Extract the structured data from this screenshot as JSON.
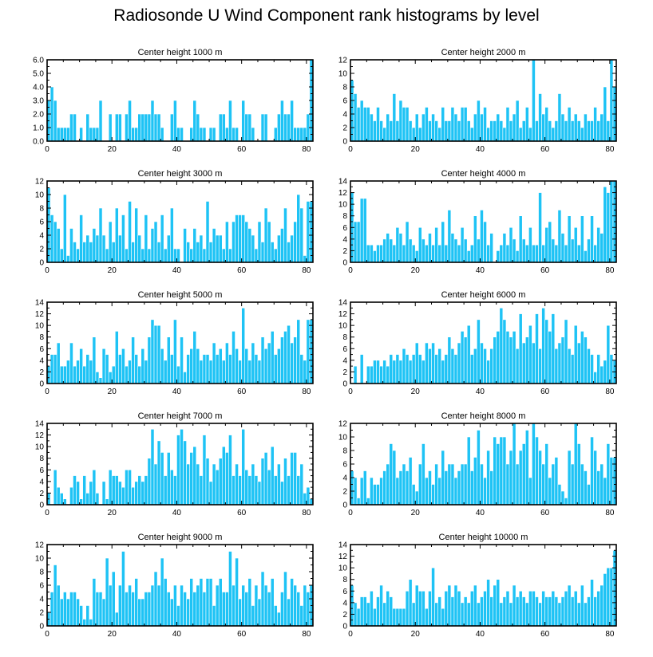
{
  "title": "Radiosonde U Wind Component rank histograms by level",
  "colors": {
    "bar": "#1EC3F5",
    "axis": "#000000",
    "bar_edge": "#ffffff"
  },
  "chart_data": [
    {
      "type": "bar",
      "title": "Center height 1000 m",
      "xlabel": "",
      "ylabel": "",
      "xlim": [
        0,
        82
      ],
      "ylim": [
        0,
        6
      ],
      "xticks": [
        0,
        20,
        40,
        60,
        80
      ],
      "yticks": [
        0,
        1,
        2,
        3,
        4,
        5,
        6
      ],
      "ytick_labels": [
        "0.0",
        "1.0",
        "2.0",
        "3.0",
        "4.0",
        "5.0",
        "6.0"
      ],
      "values": [
        3,
        4,
        3,
        1,
        1,
        1,
        1,
        2,
        2,
        0,
        1,
        0,
        2,
        1,
        1,
        1,
        3,
        0,
        0,
        2,
        0,
        2,
        2,
        0,
        2,
        3,
        1,
        1,
        2,
        2,
        2,
        2,
        3,
        2,
        2,
        1,
        0,
        0,
        2,
        3,
        1,
        1,
        0,
        0,
        1,
        3,
        2,
        1,
        1,
        0,
        1,
        1,
        0,
        2,
        2,
        1,
        3,
        1,
        1,
        0,
        3,
        2,
        2,
        1,
        0,
        0,
        2,
        2,
        0,
        0,
        1,
        2,
        3,
        2,
        2,
        3,
        1,
        1,
        1,
        1,
        2,
        6
      ]
    },
    {
      "type": "bar",
      "title": "Center height 2000 m",
      "xlabel": "",
      "ylabel": "",
      "xlim": [
        0,
        82
      ],
      "ylim": [
        0,
        12
      ],
      "xticks": [
        0,
        20,
        40,
        60,
        80
      ],
      "yticks": [
        0,
        2,
        4,
        6,
        8,
        10,
        12
      ],
      "ytick_labels": [
        "0",
        "2",
        "4",
        "6",
        "8",
        "10",
        "12"
      ],
      "values": [
        9,
        7,
        5,
        6,
        5,
        5,
        4,
        3,
        5,
        3,
        2,
        4,
        3,
        7,
        3,
        6,
        5,
        5,
        3,
        2,
        4,
        2,
        4,
        5,
        3,
        4,
        3,
        2,
        5,
        3,
        3,
        5,
        4,
        3,
        5,
        5,
        3,
        2,
        4,
        6,
        4,
        5,
        2,
        3,
        3,
        4,
        3,
        2,
        5,
        3,
        4,
        6,
        2,
        3,
        5,
        2,
        12,
        3,
        7,
        4,
        5,
        3,
        2,
        3,
        7,
        4,
        3,
        5,
        3,
        4,
        3,
        2,
        4,
        3,
        3,
        5,
        3,
        4,
        8,
        3,
        12,
        8
      ]
    },
    {
      "type": "bar",
      "title": "Center height 3000 m",
      "xlabel": "",
      "ylabel": "",
      "xlim": [
        0,
        82
      ],
      "ylim": [
        0,
        12
      ],
      "xticks": [
        0,
        20,
        40,
        60,
        80
      ],
      "yticks": [
        0,
        2,
        4,
        6,
        8,
        10,
        12
      ],
      "ytick_labels": [
        "0",
        "2",
        "4",
        "6",
        "8",
        "10",
        "12"
      ],
      "values": [
        11,
        7,
        6,
        5,
        2,
        10,
        1,
        5,
        3,
        2,
        7,
        3,
        4,
        3,
        5,
        4,
        8,
        4,
        2,
        6,
        3,
        8,
        4,
        7,
        2,
        9,
        3,
        8,
        4,
        2,
        7,
        2,
        5,
        6,
        3,
        7,
        2,
        4,
        8,
        2,
        2,
        0,
        5,
        3,
        2,
        5,
        3,
        4,
        2,
        9,
        3,
        5,
        4,
        4,
        2,
        6,
        2,
        6,
        7,
        7,
        7,
        6,
        5,
        4,
        2,
        6,
        3,
        8,
        6,
        3,
        2,
        4,
        5,
        8,
        3,
        4,
        6,
        10,
        8,
        1,
        9,
        9
      ]
    },
    {
      "type": "bar",
      "title": "Center height 4000 m",
      "xlabel": "",
      "ylabel": "",
      "xlim": [
        0,
        82
      ],
      "ylim": [
        0,
        14
      ],
      "xticks": [
        0,
        20,
        40,
        60,
        80
      ],
      "yticks": [
        0,
        2,
        4,
        6,
        8,
        10,
        12,
        14
      ],
      "ytick_labels": [
        "0",
        "2",
        "4",
        "6",
        "8",
        "10",
        "12",
        "14"
      ],
      "values": [
        12,
        7,
        7,
        11,
        11,
        3,
        3,
        2,
        3,
        3,
        4,
        5,
        4,
        3,
        6,
        5,
        3,
        7,
        4,
        3,
        2,
        6,
        4,
        3,
        5,
        3,
        6,
        3,
        7,
        3,
        9,
        5,
        4,
        3,
        6,
        4,
        2,
        3,
        8,
        4,
        9,
        7,
        3,
        5,
        0,
        2,
        3,
        5,
        3,
        6,
        4,
        2,
        8,
        4,
        3,
        6,
        3,
        3,
        12,
        3,
        6,
        7,
        4,
        3,
        9,
        5,
        3,
        8,
        4,
        6,
        3,
        8,
        2,
        4,
        8,
        3,
        6,
        5,
        13,
        12,
        14,
        14
      ]
    },
    {
      "type": "bar",
      "title": "Center height 5000 m",
      "xlabel": "",
      "ylabel": "",
      "xlim": [
        0,
        82
      ],
      "ylim": [
        0,
        14
      ],
      "xticks": [
        0,
        20,
        40,
        60,
        80
      ],
      "yticks": [
        0,
        2,
        4,
        6,
        8,
        10,
        12,
        14
      ],
      "ytick_labels": [
        "0",
        "2",
        "4",
        "6",
        "8",
        "10",
        "12",
        "14"
      ],
      "values": [
        3,
        5,
        5,
        7,
        3,
        3,
        4,
        7,
        3,
        4,
        6,
        3,
        5,
        4,
        8,
        2,
        1,
        6,
        5,
        2,
        3,
        9,
        5,
        6,
        3,
        4,
        8,
        5,
        3,
        6,
        4,
        8,
        11,
        10,
        10,
        6,
        4,
        8,
        5,
        11,
        3,
        8,
        2,
        5,
        6,
        9,
        6,
        4,
        5,
        5,
        4,
        7,
        5,
        6,
        4,
        7,
        5,
        9,
        6,
        4,
        13,
        6,
        4,
        7,
        5,
        4,
        8,
        6,
        7,
        9,
        5,
        6,
        8,
        9,
        10,
        7,
        8,
        11,
        5,
        4,
        11,
        11
      ]
    },
    {
      "type": "bar",
      "title": "Center height 6000 m",
      "xlabel": "",
      "ylabel": "",
      "xlim": [
        0,
        82
      ],
      "ylim": [
        0,
        14
      ],
      "xticks": [
        0,
        20,
        40,
        60,
        80
      ],
      "yticks": [
        0,
        2,
        4,
        6,
        8,
        10,
        12,
        14
      ],
      "ytick_labels": [
        "0",
        "2",
        "4",
        "6",
        "8",
        "10",
        "12",
        "14"
      ],
      "values": [
        0,
        3,
        0,
        5,
        0,
        3,
        3,
        4,
        4,
        3,
        4,
        3,
        5,
        4,
        5,
        4,
        6,
        5,
        4,
        5,
        7,
        5,
        4,
        7,
        6,
        7,
        5,
        6,
        4,
        5,
        8,
        6,
        5,
        7,
        9,
        8,
        10,
        5,
        6,
        11,
        7,
        6,
        4,
        6,
        8,
        9,
        13,
        11,
        9,
        8,
        9,
        6,
        12,
        7,
        8,
        10,
        7,
        12,
        6,
        13,
        11,
        9,
        12,
        6,
        7,
        8,
        11,
        6,
        5,
        10,
        7,
        9,
        8,
        6,
        5,
        2,
        5,
        3,
        4,
        10,
        5,
        4
      ]
    },
    {
      "type": "bar",
      "title": "Center height 7000 m",
      "xlabel": "",
      "ylabel": "",
      "xlim": [
        0,
        82
      ],
      "ylim": [
        0,
        14
      ],
      "xticks": [
        0,
        20,
        40,
        60,
        80
      ],
      "yticks": [
        0,
        2,
        4,
        6,
        8,
        10,
        12,
        14
      ],
      "ytick_labels": [
        "0",
        "2",
        "4",
        "6",
        "8",
        "10",
        "12",
        "14"
      ],
      "values": [
        2,
        0,
        6,
        3,
        2,
        1,
        0,
        3,
        5,
        4,
        1,
        5,
        2,
        4,
        6,
        2,
        0,
        4,
        1,
        6,
        5,
        5,
        4,
        3,
        6,
        6,
        3,
        4,
        5,
        4,
        5,
        8,
        13,
        7,
        11,
        9,
        5,
        9,
        6,
        5,
        12,
        13,
        11,
        7,
        9,
        10,
        7,
        5,
        12,
        8,
        4,
        7,
        6,
        8,
        10,
        9,
        12,
        5,
        7,
        5,
        13,
        6,
        5,
        7,
        5,
        4,
        8,
        9,
        6,
        10,
        5,
        7,
        4,
        8,
        5,
        9,
        9,
        5,
        7,
        2,
        3,
        1
      ]
    },
    {
      "type": "bar",
      "title": "Center height 8000 m",
      "xlabel": "",
      "ylabel": "",
      "xlim": [
        0,
        82
      ],
      "ylim": [
        0,
        12
      ],
      "xticks": [
        0,
        20,
        40,
        60,
        80
      ],
      "yticks": [
        0,
        2,
        4,
        6,
        8,
        10,
        12
      ],
      "ytick_labels": [
        "0",
        "2",
        "4",
        "6",
        "8",
        "10",
        "12"
      ],
      "values": [
        5,
        4,
        1,
        4,
        5,
        1,
        4,
        3,
        3,
        4,
        5,
        6,
        9,
        8,
        4,
        5,
        6,
        5,
        7,
        3,
        2,
        6,
        9,
        4,
        5,
        3,
        6,
        4,
        8,
        5,
        6,
        6,
        4,
        5,
        6,
        6,
        10,
        5,
        7,
        11,
        6,
        4,
        8,
        5,
        10,
        9,
        10,
        10,
        6,
        8,
        12,
        6,
        8,
        9,
        11,
        4,
        12,
        10,
        8,
        6,
        9,
        4,
        6,
        7,
        3,
        2,
        1,
        8,
        6,
        12,
        9,
        6,
        5,
        3,
        10,
        8,
        5,
        6,
        4,
        9,
        7,
        7
      ]
    },
    {
      "type": "bar",
      "title": "Center height 9000 m",
      "xlabel": "",
      "ylabel": "",
      "xlim": [
        0,
        82
      ],
      "ylim": [
        0,
        12
      ],
      "xticks": [
        0,
        20,
        40,
        60,
        80
      ],
      "yticks": [
        0,
        2,
        4,
        6,
        8,
        10,
        12
      ],
      "ytick_labels": [
        "0",
        "2",
        "4",
        "6",
        "8",
        "10",
        "12"
      ],
      "values": [
        2,
        5,
        9,
        6,
        4,
        5,
        4,
        5,
        5,
        4,
        3,
        1,
        3,
        1,
        7,
        5,
        5,
        4,
        10,
        6,
        8,
        2,
        6,
        11,
        5,
        6,
        5,
        7,
        4,
        4,
        5,
        5,
        6,
        8,
        6,
        10,
        7,
        5,
        4,
        6,
        3,
        6,
        5,
        4,
        7,
        5,
        6,
        7,
        5,
        7,
        7,
        3,
        6,
        7,
        5,
        5,
        11,
        6,
        10,
        4,
        6,
        5,
        7,
        3,
        6,
        4,
        8,
        6,
        5,
        7,
        3,
        2,
        5,
        8,
        4,
        7,
        6,
        5,
        3,
        6,
        5,
        6
      ]
    },
    {
      "type": "bar",
      "title": "Center height 10000 m",
      "xlabel": "",
      "ylabel": "",
      "xlim": [
        0,
        82
      ],
      "ylim": [
        0,
        14
      ],
      "xticks": [
        0,
        20,
        40,
        60,
        80
      ],
      "yticks": [
        0,
        2,
        4,
        6,
        8,
        10,
        12,
        14
      ],
      "ytick_labels": [
        "0",
        "2",
        "4",
        "6",
        "8",
        "10",
        "12",
        "14"
      ],
      "values": [
        7,
        4,
        3,
        5,
        5,
        4,
        6,
        3,
        5,
        7,
        4,
        6,
        5,
        3,
        3,
        3,
        3,
        6,
        8,
        4,
        7,
        6,
        6,
        3,
        6,
        10,
        4,
        5,
        3,
        6,
        7,
        5,
        7,
        6,
        4,
        5,
        4,
        6,
        7,
        4,
        5,
        6,
        8,
        5,
        7,
        8,
        4,
        5,
        6,
        4,
        7,
        5,
        6,
        5,
        4,
        6,
        6,
        5,
        4,
        6,
        5,
        5,
        6,
        5,
        4,
        5,
        6,
        7,
        5,
        6,
        4,
        7,
        4,
        5,
        8,
        5,
        6,
        7,
        9,
        10,
        10,
        13
      ]
    }
  ]
}
